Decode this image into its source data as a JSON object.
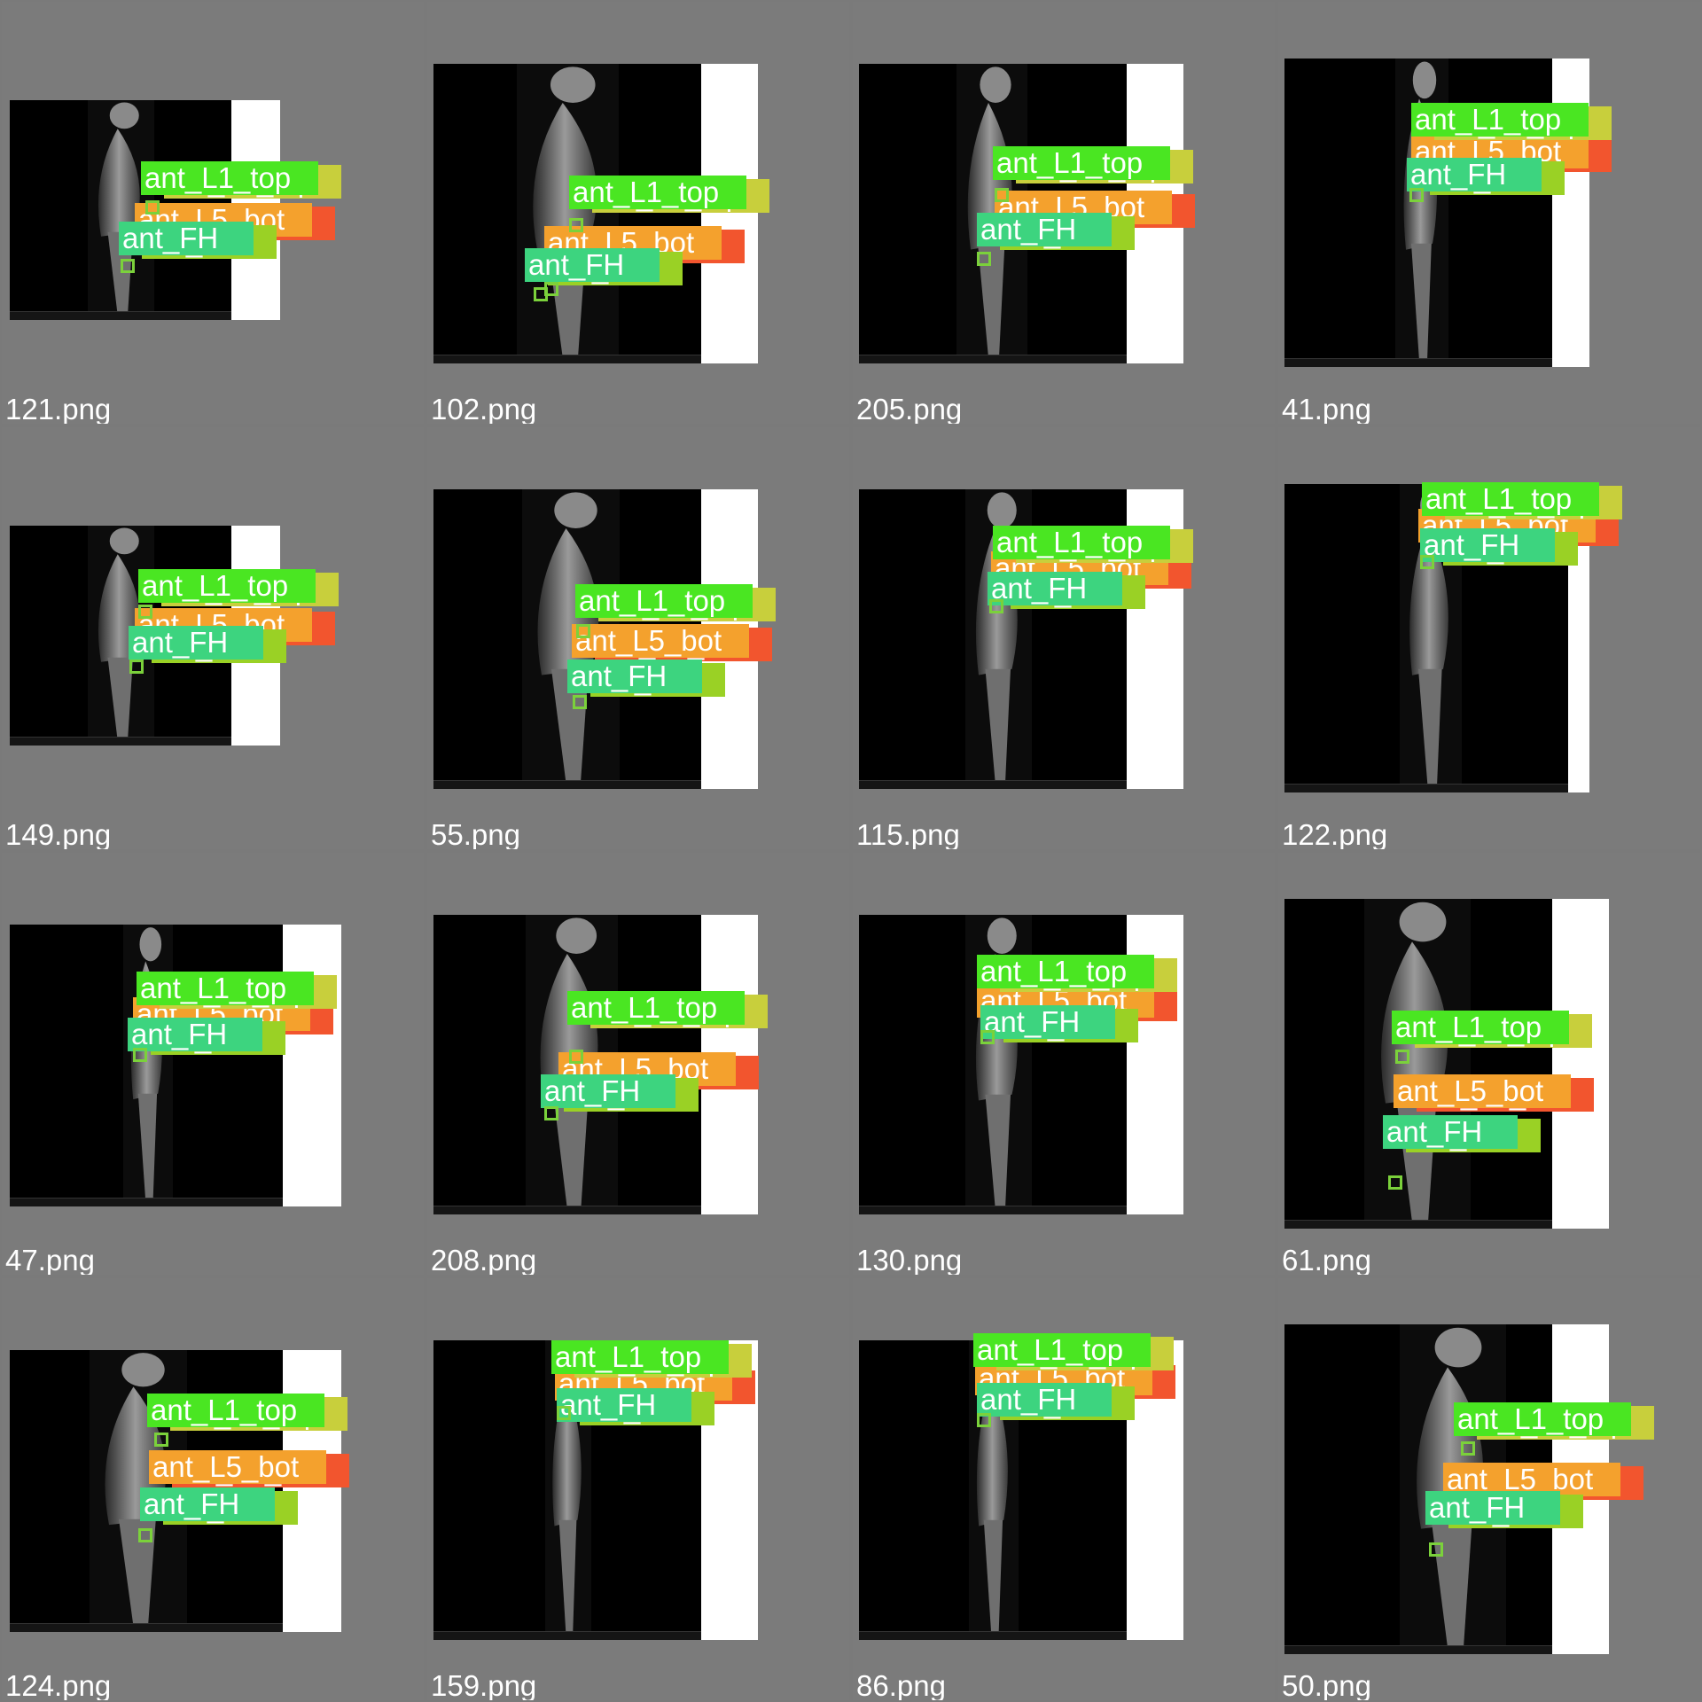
{
  "labels": {
    "l1_top": "ant_L1_top",
    "l5_bot": "ant_L5_bot",
    "fh": "ant_FH"
  },
  "colors": {
    "background": "#7b7b7b",
    "l1_top": "#4ae622",
    "l5_bot": "#f4a12d",
    "fh": "#3dd47f"
  },
  "tiles": [
    {
      "filename": "121.png"
    },
    {
      "filename": "102.png"
    },
    {
      "filename": "205.png"
    },
    {
      "filename": "41.png"
    },
    {
      "filename": "149.png"
    },
    {
      "filename": "55.png"
    },
    {
      "filename": "115.png"
    },
    {
      "filename": "122.png"
    },
    {
      "filename": "47.png"
    },
    {
      "filename": "208.png"
    },
    {
      "filename": "130.png"
    },
    {
      "filename": "61.png"
    },
    {
      "filename": "124.png"
    },
    {
      "filename": "159.png"
    },
    {
      "filename": "86.png"
    },
    {
      "filename": "50.png"
    }
  ]
}
